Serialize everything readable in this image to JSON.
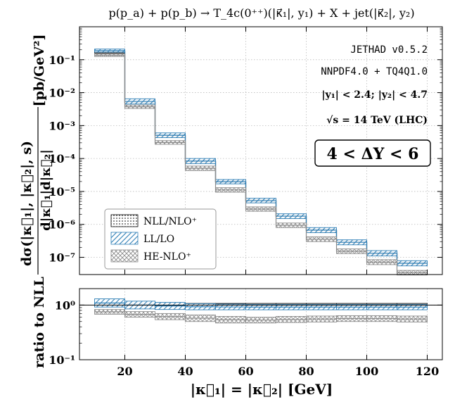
{
  "title": "p(p_a) + p(p_b) → T_4c(0⁺⁺)(|κ⃗₁|, y₁) + X + jet(|κ⃗₂|, y₂)",
  "annotations": {
    "code": "JETHAD v0.5.2",
    "pdf": "NNPDF4.0 + TQ4Q1.0",
    "cuts": "|y₁| < 2.4;  |y₂| < 4.7",
    "energy": "√s = 14 TeV (LHC)",
    "rapidity_box": "4 < ΔY < 6"
  },
  "colors": {
    "nll": "#000000",
    "ll": "#2f7fb6",
    "he": "#8a8a8a"
  },
  "chart_data": [
    {
      "type": "line",
      "step": true,
      "title": "",
      "ylabel_main": "dσ(|κ⃗₁|, |κ⃗₂|, s)",
      "ylabel_denominator": "d|κ⃗₁|d|κ⃗₂|",
      "ylabel_units": "[pb/GeV²]",
      "xlabel": "|κ⃗₁| = |κ⃗₂| [GeV]",
      "xscale": "linear",
      "yscale": "log",
      "xlim": [
        5,
        125
      ],
      "ylim": [
        3e-08,
        1.0
      ],
      "y_ticks": [
        "10⁻¹",
        "10⁻²",
        "10⁻³",
        "10⁻⁴",
        "10⁻⁵",
        "10⁻⁶",
        "10⁻⁷"
      ],
      "bin_edges": [
        10,
        20,
        30,
        40,
        50,
        60,
        70,
        80,
        90,
        100,
        110,
        120
      ],
      "series": [
        {
          "name": "NLL/NLO⁺",
          "hatch": "dots",
          "lo": [
            0.16,
            0.0046,
            0.00046,
            7.5e-05,
            1.8e-05,
            4.8e-06,
            1.6e-06,
            6e-07,
            2.6e-07,
            1.2e-07,
            6e-08
          ],
          "hi": [
            0.185,
            0.0055,
            0.00053,
            8.7e-05,
            2.1e-05,
            5.6e-06,
            1.9e-06,
            7.1e-07,
            3.1e-07,
            1.4e-07,
            7.1e-08
          ]
        },
        {
          "name": "LL/LO",
          "hatch": "diagonal",
          "lo": [
            0.17,
            0.0045,
            0.00043,
            7e-05,
            1.7e-05,
            4.5e-06,
            1.5e-06,
            5.6e-07,
            2.4e-07,
            1.1e-07,
            5.5e-08
          ],
          "hi": [
            0.21,
            0.0065,
            0.0006,
            0.0001,
            2.3e-05,
            6.2e-06,
            2.1e-06,
            8e-07,
            3.4e-07,
            1.6e-07,
            7.9e-08
          ]
        },
        {
          "name": "HE-NLO⁺",
          "hatch": "crosshatch",
          "lo": [
            0.125,
            0.0033,
            0.00027,
            4.3e-05,
            9.5e-06,
            2.5e-06,
            8e-07,
            3e-07,
            1.3e-07,
            6e-08,
            2.9e-08
          ],
          "hi": [
            0.15,
            0.0042,
            0.00035,
            5.9e-05,
            1.3e-05,
            3.4e-06,
            1.1e-06,
            4.2e-07,
            1.8e-07,
            8.5e-08,
            4e-08
          ]
        }
      ],
      "legend": {
        "placement": "lower-left",
        "entries": [
          "NLL/NLO⁺",
          "LL/LO",
          "HE-NLO⁺"
        ]
      }
    },
    {
      "type": "line",
      "step": true,
      "title": "",
      "ylabel": "ratio to NLL",
      "xlabel": "|κ⃗₁| = |κ⃗₂| [GeV]",
      "yscale": "log",
      "ylim": [
        0.1,
        2.0
      ],
      "y_ticks": [
        "10⁰",
        "10⁻¹"
      ],
      "x_ticks": [
        "20",
        "40",
        "60",
        "80",
        "100",
        "120"
      ],
      "reference_line": 1.0,
      "bin_edges": [
        10,
        20,
        30,
        40,
        50,
        60,
        70,
        80,
        90,
        100,
        110,
        120
      ],
      "series": [
        {
          "name": "NLL/NLO⁺",
          "hatch": "dots",
          "lo": [
            0.93,
            0.93,
            0.93,
            0.93,
            0.93,
            0.93,
            0.93,
            0.93,
            0.93,
            0.93,
            0.93
          ],
          "hi": [
            1.07,
            1.07,
            1.07,
            1.07,
            1.07,
            1.07,
            1.07,
            1.07,
            1.07,
            1.07,
            1.07
          ]
        },
        {
          "name": "LL/LO",
          "hatch": "diagonal",
          "lo": [
            0.92,
            0.85,
            0.83,
            0.82,
            0.82,
            0.82,
            0.82,
            0.82,
            0.82,
            0.82,
            0.82
          ],
          "hi": [
            1.3,
            1.18,
            1.12,
            1.06,
            1.04,
            1.03,
            1.03,
            1.03,
            1.03,
            1.03,
            1.03
          ]
        },
        {
          "name": "HE-NLO⁺",
          "hatch": "crosshatch",
          "lo": [
            0.68,
            0.6,
            0.54,
            0.5,
            0.47,
            0.47,
            0.48,
            0.49,
            0.5,
            0.5,
            0.49
          ],
          "hi": [
            0.83,
            0.76,
            0.7,
            0.66,
            0.62,
            0.6,
            0.62,
            0.63,
            0.64,
            0.64,
            0.63
          ]
        }
      ]
    }
  ]
}
